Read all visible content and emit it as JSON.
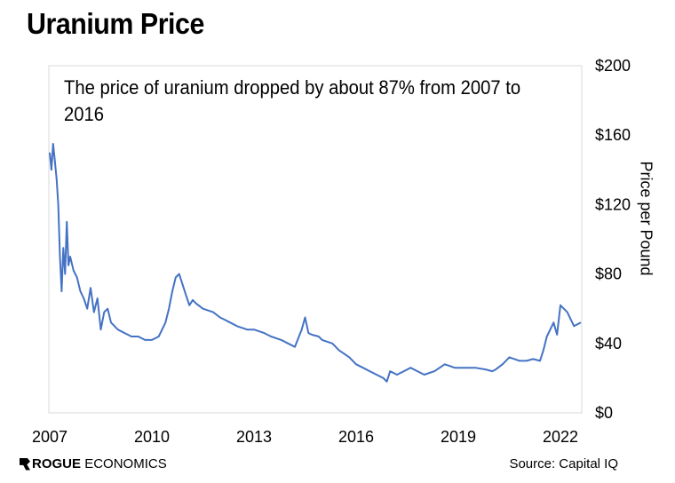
{
  "title": "Uranium Price",
  "annotation": "The price of uranium dropped by about 87% from 2007 to 2016",
  "brand": {
    "bold": "ROGUE",
    "rest": "ECONOMICS"
  },
  "source": "Source: Capital IQ",
  "colors": {
    "line": "#4472C4",
    "frame": "#d9d9d9"
  },
  "chart_data": {
    "type": "line",
    "title": "Uranium Price",
    "ylabel": "Price per Pound",
    "xlabel": "",
    "ylim": [
      0,
      200
    ],
    "xlim": [
      2007,
      2022.6
    ],
    "y_axis_position": "right",
    "grid": false,
    "y_tick_labels": [
      "$0",
      "$40",
      "$80",
      "$120",
      "$160",
      "$200"
    ],
    "y_tick_values": [
      0,
      40,
      80,
      120,
      160,
      200
    ],
    "x_tick_labels": [
      "2007",
      "2010",
      "2013",
      "2016",
      "2019",
      "2022"
    ],
    "x_tick_values": [
      2007,
      2010,
      2013,
      2016,
      2019,
      2022
    ],
    "series": [
      {
        "x": [
          2007.0,
          2007.05,
          2007.1,
          2007.15,
          2007.2,
          2007.25,
          2007.3,
          2007.35,
          2007.4,
          2007.45,
          2007.5,
          2007.55,
          2007.6,
          2007.7,
          2007.8,
          2007.9,
          2008.0,
          2008.1,
          2008.2,
          2008.3,
          2008.4,
          2008.5,
          2008.6,
          2008.7,
          2008.8,
          2009.0,
          2009.2,
          2009.4,
          2009.6,
          2009.8,
          2010.0,
          2010.2,
          2010.3,
          2010.4,
          2010.5,
          2010.6,
          2010.7,
          2010.8,
          2010.9,
          2011.0,
          2011.1,
          2011.2,
          2011.3,
          2011.5,
          2011.8,
          2012.0,
          2012.3,
          2012.5,
          2012.8,
          2013.0,
          2013.3,
          2013.5,
          2013.8,
          2014.0,
          2014.2,
          2014.4,
          2014.5,
          2014.6,
          2014.7,
          2014.9,
          2015.0,
          2015.3,
          2015.5,
          2015.8,
          2016.0,
          2016.2,
          2016.4,
          2016.6,
          2016.8,
          2016.9,
          2017.0,
          2017.2,
          2017.4,
          2017.6,
          2017.8,
          2018.0,
          2018.3,
          2018.6,
          2018.9,
          2019.2,
          2019.5,
          2019.8,
          2020.0,
          2020.1,
          2020.3,
          2020.5,
          2020.8,
          2021.0,
          2021.2,
          2021.4,
          2021.5,
          2021.6,
          2021.7,
          2021.8,
          2021.9,
          2022.0,
          2022.2,
          2022.4,
          2022.6
        ],
        "values": [
          150,
          140,
          155,
          145,
          135,
          120,
          90,
          70,
          95,
          80,
          110,
          85,
          90,
          82,
          78,
          70,
          66,
          60,
          72,
          58,
          66,
          48,
          58,
          60,
          52,
          48,
          46,
          44,
          44,
          42,
          42,
          44,
          48,
          52,
          60,
          70,
          78,
          80,
          74,
          68,
          62,
          65,
          63,
          60,
          58,
          55,
          52,
          50,
          48,
          48,
          46,
          44,
          42,
          40,
          38,
          48,
          55,
          46,
          45,
          44,
          42,
          40,
          36,
          32,
          28,
          26,
          24,
          22,
          20,
          18,
          24,
          22,
          24,
          26,
          24,
          22,
          24,
          28,
          26,
          26,
          26,
          25,
          24,
          25,
          28,
          32,
          30,
          30,
          31,
          30,
          36,
          44,
          48,
          52,
          45,
          62,
          58,
          50,
          52
        ]
      }
    ]
  }
}
